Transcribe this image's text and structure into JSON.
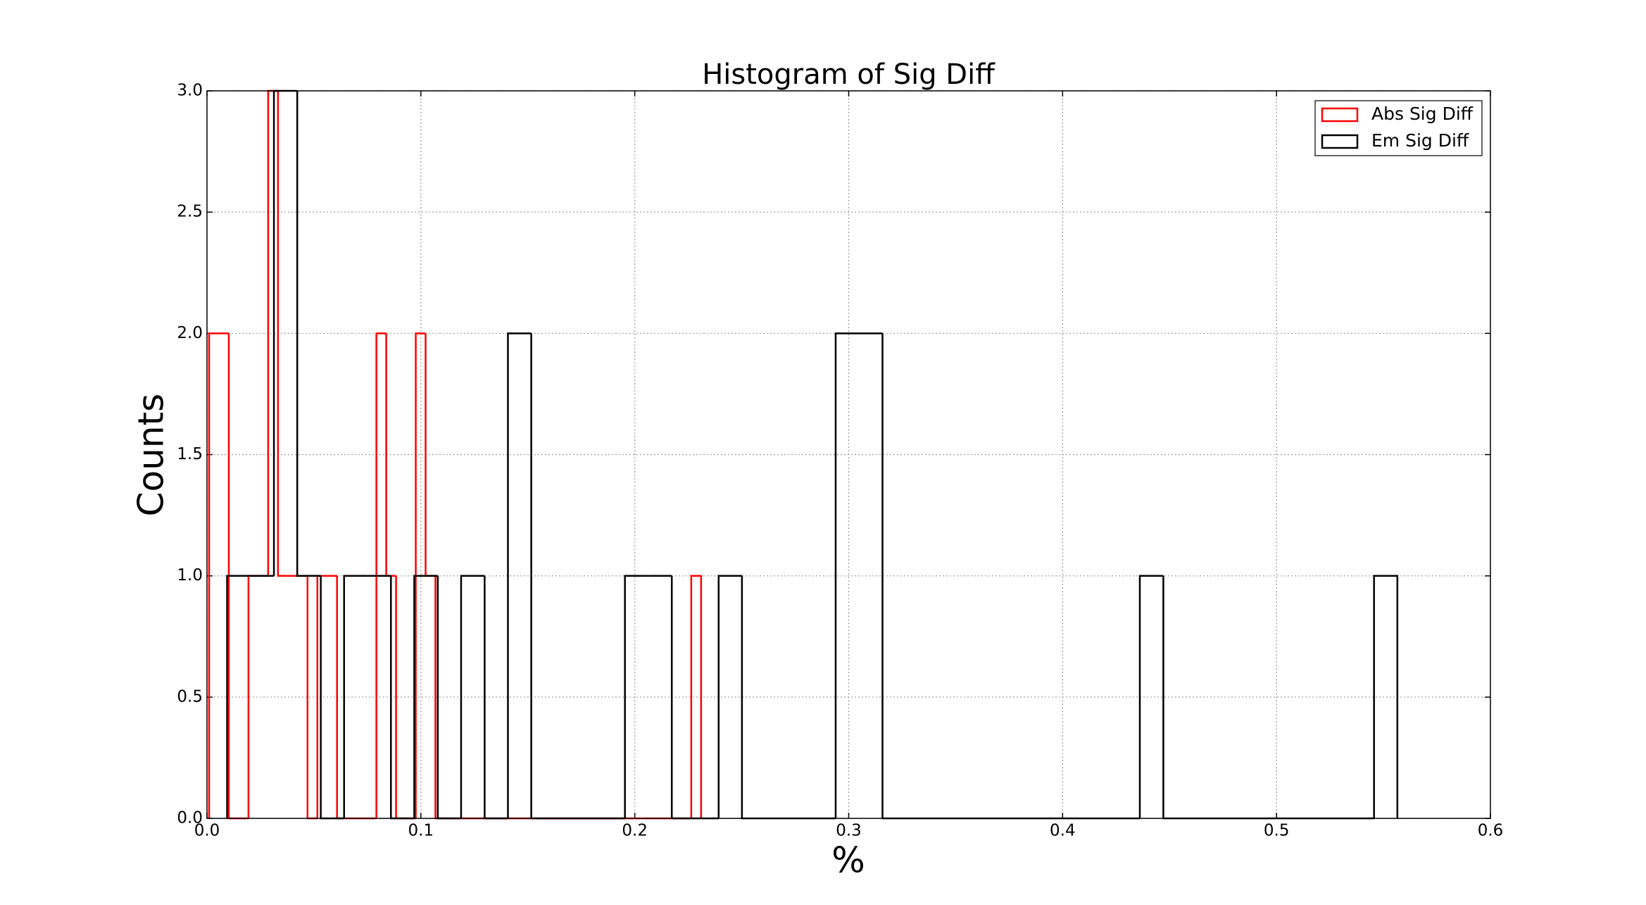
{
  "chart_data": {
    "type": "histogram",
    "title": "Histogram of Sig Diff",
    "xlabel": "%",
    "ylabel": "Counts",
    "xlim": [
      0,
      0.6
    ],
    "ylim": [
      0,
      3
    ],
    "xticks": [
      {
        "value": 0,
        "label": "0.0"
      },
      0.1,
      0.2,
      0.3,
      0.4,
      0.5,
      0.6
    ],
    "yticks": [
      {
        "value": 0,
        "label": "0.0"
      },
      0.5,
      {
        "value": 1,
        "label": "1.0"
      },
      1.5,
      {
        "value": 2,
        "label": "2.0"
      },
      2.5,
      {
        "value": 3,
        "label": "3.0"
      }
    ],
    "grid": true,
    "legend": "upper right",
    "series": [
      {
        "name": "Abs Sig Diff",
        "color": "#ff0000",
        "bins": [
          0.001,
          0.0056,
          0.0102,
          0.0148,
          0.0194,
          0.024,
          0.0286,
          0.0332,
          0.0378,
          0.0424,
          0.047,
          0.0516,
          0.0562,
          0.0608,
          0.0654,
          0.07,
          0.0746,
          0.0792,
          0.0838,
          0.0884,
          0.093,
          0.0976,
          0.1022,
          0.1068,
          0.1114,
          0.116,
          0.1206,
          0.1252,
          0.1298,
          0.1344,
          0.139,
          0.1436,
          0.1482,
          0.1528,
          0.1574,
          0.162,
          0.1666,
          0.1712,
          0.1758,
          0.1804,
          0.185,
          0.1896,
          0.1942,
          0.1988,
          0.2034,
          0.208,
          0.2126,
          0.2172,
          0.2218,
          0.2264,
          0.231
        ],
        "values": [
          2,
          2,
          0,
          0,
          1,
          1,
          3,
          1,
          1,
          1,
          0,
          1,
          1,
          0,
          0,
          0,
          0,
          2,
          1,
          0,
          0,
          2,
          1,
          0,
          0,
          0,
          0,
          0,
          0,
          0,
          0,
          0,
          0,
          0,
          0,
          0,
          0,
          0,
          0,
          0,
          0,
          0,
          0,
          0,
          0,
          0,
          0,
          0,
          0,
          1
        ]
      },
      {
        "name": "Em Sig Diff",
        "color": "#000000",
        "bins": [
          0.0094,
          0.0203,
          0.0313,
          0.0422,
          0.0532,
          0.0641,
          0.0751,
          0.086,
          0.0969,
          0.1079,
          0.1188,
          0.1298,
          0.1407,
          0.1516,
          0.1626,
          0.1735,
          0.1845,
          0.1954,
          0.2064,
          0.2173,
          0.2282,
          0.2392,
          0.2501,
          0.2611,
          0.272,
          0.283,
          0.2939,
          0.3048,
          0.3158,
          0.3267,
          0.3377,
          0.3486,
          0.3596,
          0.3705,
          0.3814,
          0.3924,
          0.4033,
          0.4143,
          0.4252,
          0.4361,
          0.4471,
          0.458,
          0.469,
          0.4799,
          0.4909,
          0.5018,
          0.5127,
          0.5237,
          0.5346,
          0.5456,
          0.5565
        ],
        "values": [
          1,
          1,
          3,
          1,
          0,
          1,
          1,
          0,
          1,
          0,
          1,
          0,
          2,
          0,
          0,
          0,
          0,
          1,
          1,
          0,
          0,
          1,
          0,
          0,
          0,
          0,
          2,
          2,
          0,
          0,
          0,
          0,
          0,
          0,
          0,
          0,
          0,
          0,
          0,
          1,
          0,
          0,
          0,
          0,
          0,
          0,
          0,
          0,
          0,
          1
        ]
      }
    ]
  }
}
